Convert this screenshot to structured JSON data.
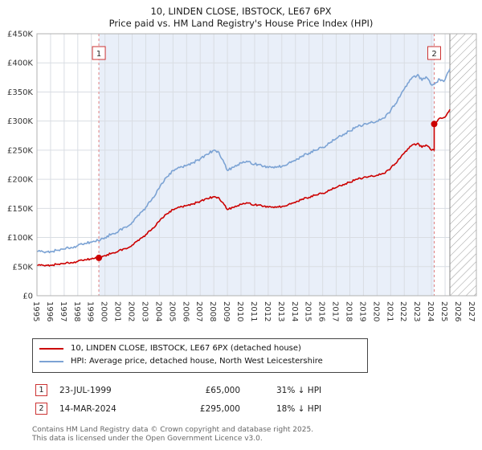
{
  "title": "10, LINDEN CLOSE, IBSTOCK, LE67 6PX",
  "subtitle": "Price paid vs. HM Land Registry's House Price Index (HPI)",
  "legend": [
    {
      "label": "10, LINDEN CLOSE, IBSTOCK, LE67 6PX (detached house)",
      "color": "#cc0000"
    },
    {
      "label": "HPI: Average price, detached house, North West Leicestershire",
      "color": "#7ca3d4"
    }
  ],
  "transactions": [
    {
      "num": "1",
      "date": "23-JUL-1999",
      "price": "£65,000",
      "hpi": "31% ↓ HPI",
      "x": 1999.55,
      "value": 65000
    },
    {
      "num": "2",
      "date": "14-MAR-2024",
      "price": "£295,000",
      "hpi": "18% ↓ HPI",
      "x": 2024.2,
      "value": 295000
    }
  ],
  "footer": {
    "line1": "Contains HM Land Registry data © Crown copyright and database right 2025.",
    "line2": "This data is licensed under the Open Government Licence v3.0."
  },
  "chart_data": {
    "type": "line",
    "title": "10, LINDEN CLOSE, IBSTOCK, LE67 6PX — Price paid vs. HPI",
    "x_range": [
      1995,
      2027.3
    ],
    "y_range": [
      0,
      450000
    ],
    "y_tick_step": 50000,
    "y_ticks": [
      "£0",
      "£50K",
      "£100K",
      "£150K",
      "£200K",
      "£250K",
      "£300K",
      "£350K",
      "£400K",
      "£450K"
    ],
    "x_ticks": [
      1995,
      1996,
      1997,
      1998,
      1999,
      2000,
      2001,
      2002,
      2003,
      2004,
      2005,
      2006,
      2007,
      2008,
      2009,
      2010,
      2011,
      2012,
      2013,
      2014,
      2015,
      2016,
      2017,
      2018,
      2019,
      2020,
      2021,
      2022,
      2023,
      2024,
      2025,
      2026,
      2027
    ],
    "grid": true,
    "legend_position": "bottom",
    "shaded_region": [
      1999.55,
      2024.2
    ],
    "hatched_region": [
      2025.35,
      2027.3
    ],
    "colors": {
      "price_paid": "#cc0000",
      "hpi": "#7ca3d4",
      "dashed_marker": "#e08080",
      "shade": "#e9eff9",
      "grid": "#d9dde3"
    },
    "series": [
      {
        "name": "10, LINDEN CLOSE, IBSTOCK, LE67 6PX (detached house)",
        "color": "#cc0000",
        "points": [
          [
            1995,
            52000
          ],
          [
            1995.5,
            52000
          ],
          [
            1996,
            52500
          ],
          [
            1996.5,
            54000
          ],
          [
            1997,
            55000
          ],
          [
            1997.5,
            57000
          ],
          [
            1998,
            59000
          ],
          [
            1998.5,
            62000
          ],
          [
            1999,
            63000
          ],
          [
            1999.55,
            65000
          ],
          [
            2000,
            69000
          ],
          [
            2000.5,
            73000
          ],
          [
            2001,
            77000
          ],
          [
            2001.5,
            81000
          ],
          [
            2002,
            87000
          ],
          [
            2002.5,
            95000
          ],
          [
            2003,
            105000
          ],
          [
            2003.5,
            116000
          ],
          [
            2004,
            128000
          ],
          [
            2004.5,
            140000
          ],
          [
            2005,
            148000
          ],
          [
            2005.5,
            152000
          ],
          [
            2006,
            155000
          ],
          [
            2006.5,
            158000
          ],
          [
            2007,
            162000
          ],
          [
            2007.5,
            167000
          ],
          [
            2008,
            170000
          ],
          [
            2008.3,
            169000
          ],
          [
            2008.6,
            161000
          ],
          [
            2009,
            148000
          ],
          [
            2009.5,
            152000
          ],
          [
            2010,
            157000
          ],
          [
            2010.5,
            159000
          ],
          [
            2011,
            156000
          ],
          [
            2011.5,
            155000
          ],
          [
            2012,
            152000
          ],
          [
            2012.5,
            153000
          ],
          [
            2013,
            153000
          ],
          [
            2013.5,
            157000
          ],
          [
            2014,
            160000
          ],
          [
            2014.5,
            166000
          ],
          [
            2015,
            169000
          ],
          [
            2015.5,
            173000
          ],
          [
            2016,
            176000
          ],
          [
            2016.5,
            181000
          ],
          [
            2017,
            186000
          ],
          [
            2017.5,
            191000
          ],
          [
            2018,
            195000
          ],
          [
            2018.5,
            200000
          ],
          [
            2019,
            203000
          ],
          [
            2019.5,
            205000
          ],
          [
            2020,
            207000
          ],
          [
            2020.5,
            210000
          ],
          [
            2021,
            219000
          ],
          [
            2021.5,
            231000
          ],
          [
            2022,
            245000
          ],
          [
            2022.5,
            257000
          ],
          [
            2023,
            262000
          ],
          [
            2023.3,
            255000
          ],
          [
            2023.6,
            259000
          ],
          [
            2024,
            250000
          ],
          [
            2024.2,
            250000
          ],
          [
            2024.2,
            295000
          ],
          [
            2024.5,
            303000
          ],
          [
            2024.9,
            306000
          ],
          [
            2025.1,
            310000
          ],
          [
            2025.35,
            320000
          ]
        ]
      },
      {
        "name": "HPI: Average price, detached house, North West Leicestershire",
        "color": "#7ca3d4",
        "points": [
          [
            1995,
            76000
          ],
          [
            1995.5,
            75000
          ],
          [
            1996,
            76000
          ],
          [
            1996.5,
            78000
          ],
          [
            1997,
            80000
          ],
          [
            1997.5,
            83000
          ],
          [
            1998,
            86000
          ],
          [
            1998.5,
            90000
          ],
          [
            1999,
            92000
          ],
          [
            1999.5,
            95000
          ],
          [
            2000,
            100000
          ],
          [
            2000.5,
            106000
          ],
          [
            2001,
            111000
          ],
          [
            2001.5,
            118000
          ],
          [
            2002,
            126000
          ],
          [
            2002.5,
            138000
          ],
          [
            2003,
            152000
          ],
          [
            2003.5,
            168000
          ],
          [
            2004,
            185000
          ],
          [
            2004.5,
            203000
          ],
          [
            2005,
            215000
          ],
          [
            2005.5,
            220000
          ],
          [
            2006,
            224000
          ],
          [
            2006.5,
            229000
          ],
          [
            2007,
            235000
          ],
          [
            2007.5,
            243000
          ],
          [
            2008,
            250000
          ],
          [
            2008.3,
            248000
          ],
          [
            2008.6,
            235000
          ],
          [
            2009,
            215000
          ],
          [
            2009.5,
            221000
          ],
          [
            2010,
            228000
          ],
          [
            2010.5,
            230000
          ],
          [
            2011,
            226000
          ],
          [
            2011.5,
            224000
          ],
          [
            2012,
            220000
          ],
          [
            2012.5,
            222000
          ],
          [
            2013,
            222000
          ],
          [
            2013.5,
            228000
          ],
          [
            2014,
            232000
          ],
          [
            2014.5,
            240000
          ],
          [
            2015,
            245000
          ],
          [
            2015.5,
            250000
          ],
          [
            2016,
            255000
          ],
          [
            2016.5,
            262000
          ],
          [
            2017,
            270000
          ],
          [
            2017.5,
            277000
          ],
          [
            2018,
            283000
          ],
          [
            2018.5,
            290000
          ],
          [
            2019,
            294000
          ],
          [
            2019.5,
            297000
          ],
          [
            2020,
            300000
          ],
          [
            2020.5,
            305000
          ],
          [
            2021,
            318000
          ],
          [
            2021.5,
            335000
          ],
          [
            2022,
            355000
          ],
          [
            2022.5,
            372000
          ],
          [
            2023,
            380000
          ],
          [
            2023.3,
            370000
          ],
          [
            2023.6,
            376000
          ],
          [
            2024,
            362000
          ],
          [
            2024.3,
            366000
          ],
          [
            2024.6,
            372000
          ],
          [
            2024.9,
            368000
          ],
          [
            2025.1,
            378000
          ],
          [
            2025.35,
            390000
          ]
        ]
      }
    ],
    "markers": [
      {
        "label": "1",
        "x": 1999.55,
        "y": 65000
      },
      {
        "label": "2",
        "x": 2024.2,
        "y": 295000
      }
    ]
  }
}
